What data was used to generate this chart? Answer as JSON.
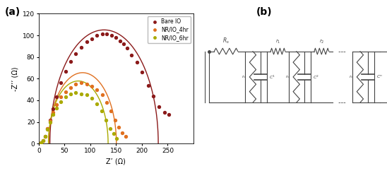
{
  "title_a": "(a)",
  "title_b": "(b)",
  "xlabel": "Z’ (Ω)",
  "ylabel": "-Z’’ (Ω)",
  "xlim": [
    0,
    300
  ],
  "ylim": [
    0,
    120
  ],
  "xticks": [
    0,
    50,
    100,
    150,
    200,
    250
  ],
  "yticks": [
    0,
    20,
    40,
    60,
    80,
    100,
    120
  ],
  "legend": [
    "Bare IO",
    "NR/IO_4hr",
    "NR/IO_6hr"
  ],
  "colors": [
    "#8B1A1A",
    "#E07020",
    "#AAAA00"
  ],
  "bare_io_x": [
    5,
    8,
    12,
    17,
    22,
    28,
    35,
    43,
    52,
    62,
    72,
    83,
    93,
    103,
    113,
    123,
    132,
    141,
    150,
    158,
    165,
    172,
    180,
    190,
    200,
    212,
    222,
    233,
    244,
    252
  ],
  "bare_io_y": [
    1,
    3,
    7,
    14,
    22,
    32,
    43,
    56,
    67,
    76,
    83,
    89,
    94,
    97,
    100,
    101,
    101,
    100,
    98,
    95,
    92,
    88,
    82,
    75,
    66,
    54,
    44,
    34,
    29,
    27
  ],
  "nr_4hr_x": [
    5,
    8,
    12,
    17,
    22,
    28,
    35,
    43,
    52,
    62,
    72,
    83,
    93,
    103,
    113,
    123,
    132,
    140,
    148,
    155,
    162,
    168
  ],
  "nr_4hr_y": [
    1,
    3,
    7,
    14,
    21,
    29,
    36,
    43,
    48,
    52,
    55,
    56,
    55,
    53,
    50,
    45,
    38,
    30,
    22,
    15,
    10,
    7
  ],
  "nr_6hr_x": [
    5,
    8,
    12,
    17,
    22,
    28,
    35,
    43,
    52,
    62,
    72,
    83,
    93,
    103,
    113,
    122,
    130,
    138,
    145,
    151
  ],
  "nr_6hr_y": [
    1,
    3,
    7,
    13,
    20,
    27,
    33,
    39,
    43,
    46,
    47,
    46,
    45,
    42,
    37,
    30,
    22,
    14,
    9,
    5
  ]
}
